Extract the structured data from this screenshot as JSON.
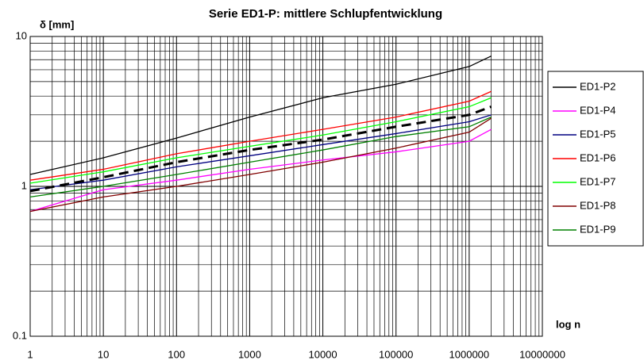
{
  "chart_data": {
    "type": "line",
    "title": "Serie ED1-P: mittlere Schlupfentwicklung",
    "y_label": "δ [mm]",
    "x_label": "log n",
    "log_x": true,
    "log_y": true,
    "grid": true,
    "minor_grid": true,
    "legend": "right",
    "xlim": [
      1,
      10000000
    ],
    "ylim": [
      0.1,
      10
    ],
    "xticks": [
      1,
      10,
      100,
      1000,
      10000,
      100000,
      1000000,
      10000000
    ],
    "yticks": [
      0.1,
      1,
      10
    ],
    "x": [
      1,
      10,
      100,
      1000,
      10000,
      100000,
      1000000,
      2000000
    ],
    "series": [
      {
        "name": "ED1-P2",
        "color": "#000000",
        "values": [
          1.2,
          1.55,
          2.1,
          2.9,
          3.9,
          4.8,
          6.3,
          7.4
        ]
      },
      {
        "name": "ED1-P4",
        "color": "#ff00ff",
        "values": [
          0.68,
          0.95,
          1.1,
          1.3,
          1.5,
          1.7,
          2.0,
          2.4
        ]
      },
      {
        "name": "ED1-P5",
        "color": "#000080",
        "values": [
          0.95,
          1.1,
          1.35,
          1.6,
          1.9,
          2.25,
          2.7,
          3.0
        ]
      },
      {
        "name": "ED1-P6",
        "color": "#ff0000",
        "values": [
          1.1,
          1.3,
          1.65,
          2.0,
          2.4,
          2.9,
          3.7,
          4.3
        ]
      },
      {
        "name": "ED1-P7",
        "color": "#00ff00",
        "values": [
          1.05,
          1.25,
          1.55,
          1.85,
          2.2,
          2.7,
          3.4,
          3.9
        ]
      },
      {
        "name": "ED1-P8",
        "color": "#800000",
        "values": [
          0.68,
          0.85,
          1.0,
          1.2,
          1.45,
          1.8,
          2.3,
          2.85
        ]
      },
      {
        "name": "ED1-P9",
        "color": "#008000",
        "values": [
          0.85,
          1.0,
          1.2,
          1.45,
          1.75,
          2.15,
          2.5,
          2.9
        ]
      },
      {
        "color": "#000000",
        "dashed": true,
        "values": [
          0.93,
          1.15,
          1.45,
          1.75,
          2.05,
          2.5,
          3.0,
          3.4
        ]
      }
    ]
  }
}
